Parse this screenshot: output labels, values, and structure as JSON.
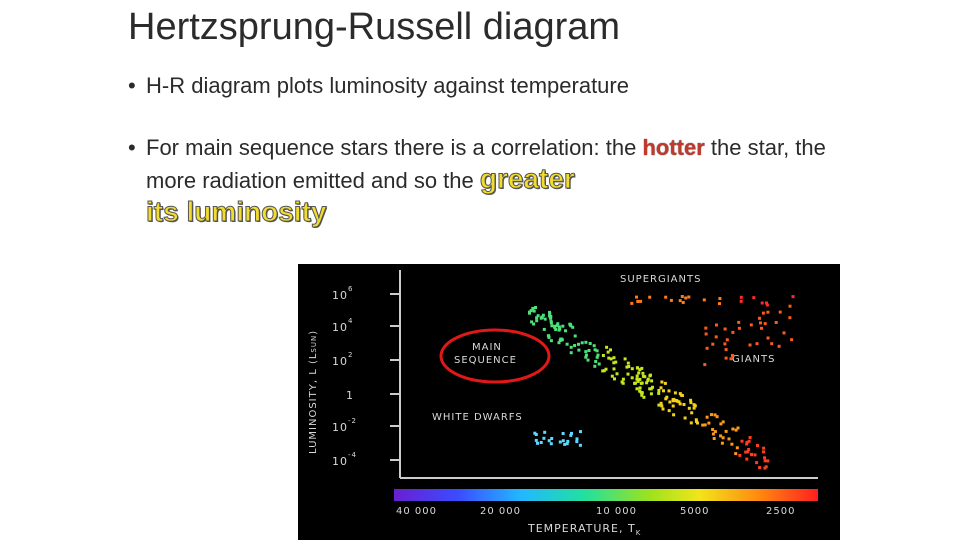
{
  "slide": {
    "title": "Hertzsprung-Russell diagram",
    "bullet_char": "•",
    "bullet1": "H-R diagram plots luminosity against temperature",
    "bullet2_part1": "For main sequence stars there is a correlation: the ",
    "bullet2_hot": "hotter",
    "bullet2_part2": " the star, the more radiation emitted and so the ",
    "bullet2_greater": "greater",
    "bullet2_lum": "its luminosity"
  },
  "diagram": {
    "ylabel": "LUMINOSITY, L (L",
    "ylabel_sub": "SUN",
    "ylabel_end": ")",
    "xlabel": "TEMPERATURE, T",
    "xlabel_sub": "K",
    "y_ticks": [
      {
        "base": "10",
        "exp": "6"
      },
      {
        "base": "10",
        "exp": "4"
      },
      {
        "base": "10",
        "exp": "2"
      },
      {
        "base": "1",
        "exp": ""
      },
      {
        "base": "10",
        "exp": "-2"
      },
      {
        "base": "10",
        "exp": "-4"
      }
    ],
    "x_ticks": [
      "40 000",
      "20 000",
      "10 000",
      "5000",
      "2500"
    ],
    "region_labels": {
      "supergiants": "SUPERGIANTS",
      "giants": "GIANTS",
      "main_sequence_1": "MAIN",
      "main_sequence_2": "SEQUENCE",
      "white_dwarfs": "WHITE DWARFS"
    },
    "colors": {
      "background": "#000000",
      "axes": "#cccccc",
      "highlight_ellipse": "#e01818"
    }
  }
}
